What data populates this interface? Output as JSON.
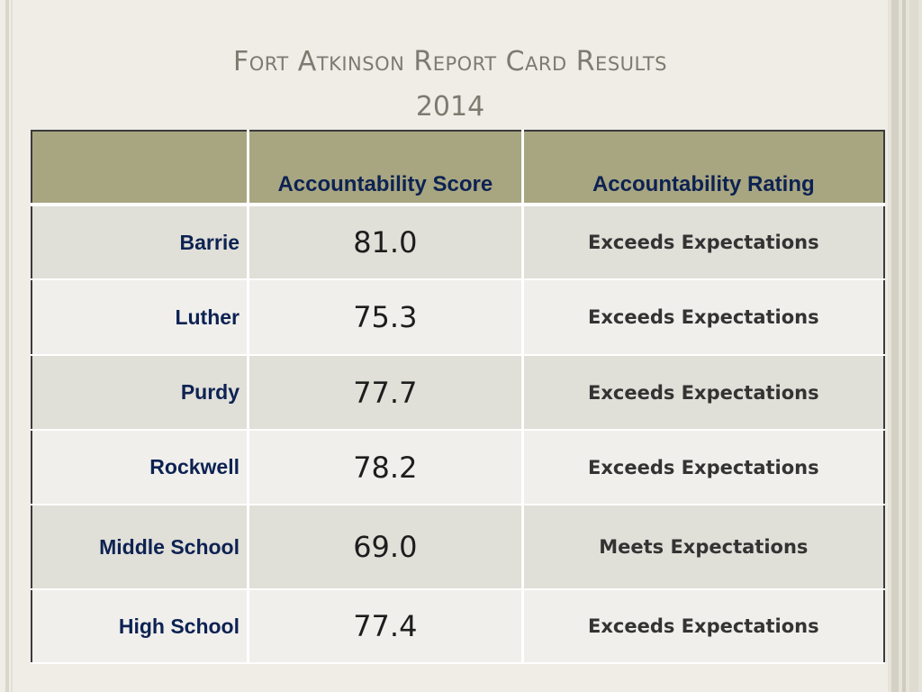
{
  "slide": {
    "title_line1": "Fort Atkinson Report Card Results",
    "title_line2": "2014"
  },
  "table": {
    "headers": [
      "",
      "Accountability Score",
      "Accountability Rating"
    ],
    "rows": [
      {
        "school": "Barrie",
        "score": "81.0",
        "rating": "Exceeds Expectations"
      },
      {
        "school": "Luther",
        "score": "75.3",
        "rating": "Exceeds Expectations"
      },
      {
        "school": "Purdy",
        "score": "77.7",
        "rating": "Exceeds Expectations"
      },
      {
        "school": "Rockwell",
        "score": "78.2",
        "rating": "Exceeds Expectations"
      },
      {
        "school": "Middle School",
        "score": "69.0",
        "rating": "Meets Expectations"
      },
      {
        "school": "High School",
        "score": "77.4",
        "rating": "Exceeds Expectations"
      }
    ]
  },
  "colors": {
    "header_bg": "#a8a681",
    "row_odd_bg": "#e0dfd8",
    "row_even_bg": "#f0efec",
    "header_text": "#0d2252",
    "title_text": "#7f7a70"
  }
}
